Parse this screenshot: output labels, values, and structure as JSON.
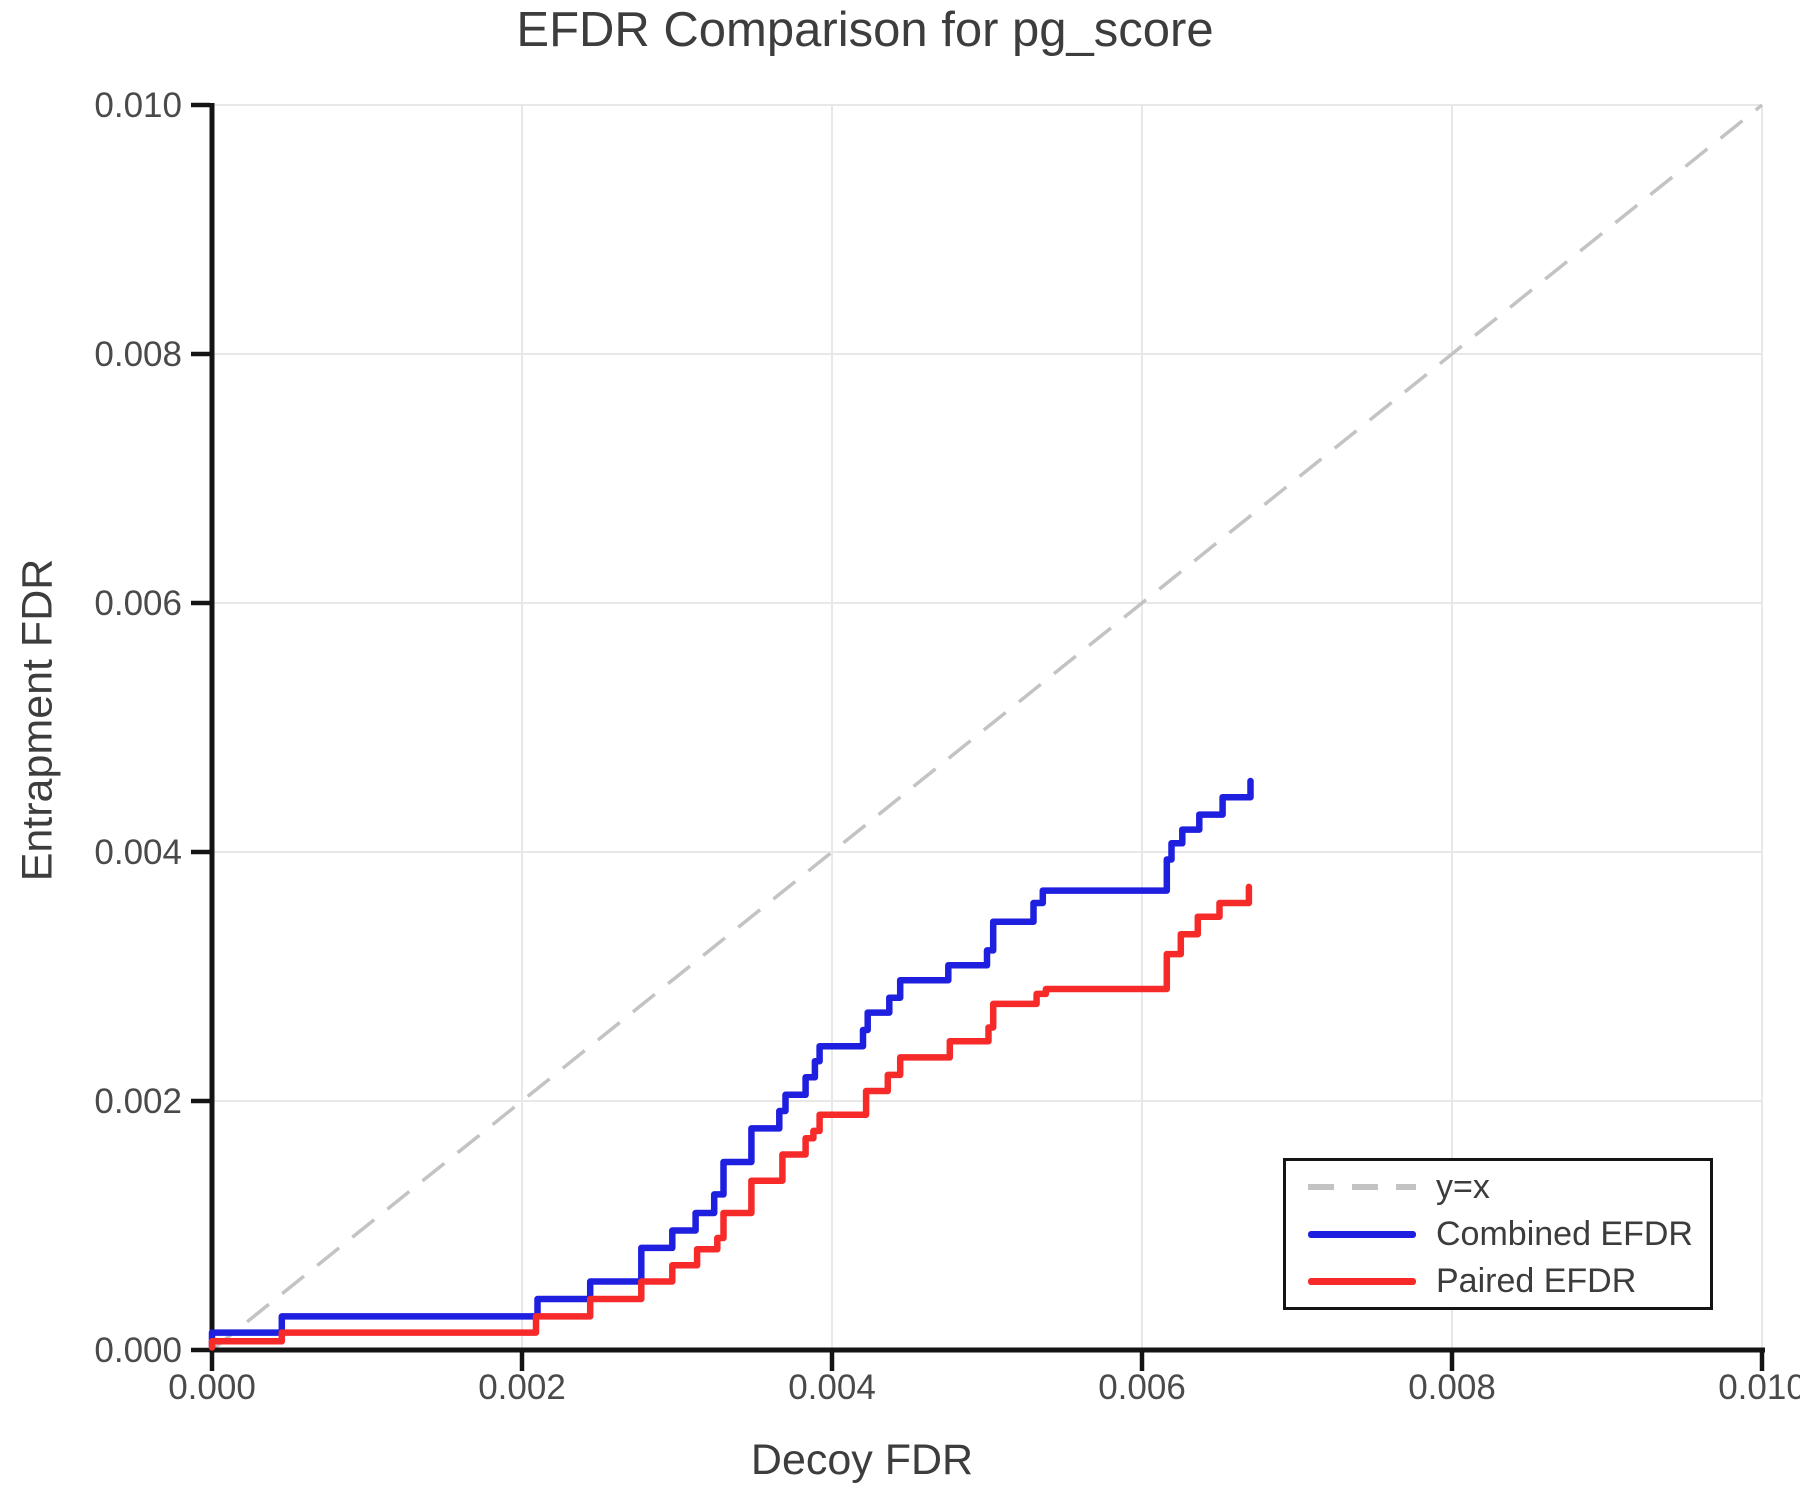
{
  "chart_data": {
    "type": "line",
    "subtype": "step-hv",
    "title": "EFDR Comparison for pg_score",
    "xlabel": "Decoy FDR",
    "ylabel": "Entrapment FDR",
    "xlim": [
      0.0,
      0.01
    ],
    "ylim": [
      0.0,
      0.01
    ],
    "xticks": [
      0.0,
      0.002,
      0.004,
      0.006,
      0.008,
      0.01
    ],
    "yticks": [
      0.0,
      0.002,
      0.004,
      0.006,
      0.008,
      0.01
    ],
    "xtick_labels": [
      "0.000",
      "0.002",
      "0.004",
      "0.006",
      "0.008",
      "0.010"
    ],
    "ytick_labels": [
      "0.000",
      "0.002",
      "0.004",
      "0.006",
      "0.008",
      "0.010"
    ],
    "grid": true,
    "legend": {
      "position": "lower right",
      "entries": [
        "y=x",
        "Combined EFDR",
        "Paired EFDR"
      ]
    },
    "reference_line": {
      "label": "y=x",
      "from": [
        0.0,
        0.0
      ],
      "to": [
        0.01,
        0.01
      ],
      "style": "dashed",
      "color": "#c3c3c3"
    },
    "series": [
      {
        "name": "Combined EFDR",
        "color": "#1f1fe0",
        "step_mode": "hv",
        "points": [
          [
            0.0,
            3e-05
          ],
          [
            0.0,
            0.00014
          ],
          [
            0.00045,
            0.00027
          ],
          [
            0.0021,
            0.00041
          ],
          [
            0.00244,
            0.00055
          ],
          [
            0.00277,
            0.00082
          ],
          [
            0.00297,
            0.00096
          ],
          [
            0.00312,
            0.0011
          ],
          [
            0.00324,
            0.00125
          ],
          [
            0.0033,
            0.00151
          ],
          [
            0.00348,
            0.00178
          ],
          [
            0.00366,
            0.00192
          ],
          [
            0.0037,
            0.00205
          ],
          [
            0.00383,
            0.00219
          ],
          [
            0.00389,
            0.00232
          ],
          [
            0.00392,
            0.00244
          ],
          [
            0.0042,
            0.00257
          ],
          [
            0.00423,
            0.00271
          ],
          [
            0.00437,
            0.00283
          ],
          [
            0.00444,
            0.00297
          ],
          [
            0.00475,
            0.00309
          ],
          [
            0.005,
            0.00321
          ],
          [
            0.00504,
            0.00344
          ],
          [
            0.0053,
            0.00359
          ],
          [
            0.00536,
            0.00369
          ],
          [
            0.00616,
            0.00394
          ],
          [
            0.00619,
            0.00407
          ],
          [
            0.00626,
            0.00418
          ],
          [
            0.00637,
            0.0043
          ],
          [
            0.00652,
            0.00444
          ],
          [
            0.0067,
            0.00457
          ]
        ]
      },
      {
        "name": "Paired EFDR",
        "color": "#f72a2a",
        "step_mode": "hv",
        "points": [
          [
            0.0,
            2e-05
          ],
          [
            0.0,
            7e-05
          ],
          [
            0.00045,
            0.00014
          ],
          [
            0.00209,
            0.00027
          ],
          [
            0.00244,
            0.00041
          ],
          [
            0.00277,
            0.00055
          ],
          [
            0.00297,
            0.00068
          ],
          [
            0.00313,
            0.00081
          ],
          [
            0.00326,
            0.0009
          ],
          [
            0.0033,
            0.0011
          ],
          [
            0.00348,
            0.00136
          ],
          [
            0.00368,
            0.00157
          ],
          [
            0.00383,
            0.0017
          ],
          [
            0.00388,
            0.00176
          ],
          [
            0.00392,
            0.00189
          ],
          [
            0.00422,
            0.00208
          ],
          [
            0.00436,
            0.00221
          ],
          [
            0.00444,
            0.00235
          ],
          [
            0.00476,
            0.00248
          ],
          [
            0.00501,
            0.00259
          ],
          [
            0.00504,
            0.00278
          ],
          [
            0.00532,
            0.00286
          ],
          [
            0.00538,
            0.0029
          ],
          [
            0.00616,
            0.00318
          ],
          [
            0.00625,
            0.00334
          ],
          [
            0.00636,
            0.00348
          ],
          [
            0.0065,
            0.00359
          ],
          [
            0.00669,
            0.00372
          ]
        ]
      }
    ],
    "colors": {
      "combined_efdr": "#1f1fe0",
      "paired_efdr": "#f72a2a",
      "reference": "#c3c3c3",
      "grid": "#e8e8e8",
      "spine": "#141414",
      "text": "#3d3d3d"
    }
  }
}
